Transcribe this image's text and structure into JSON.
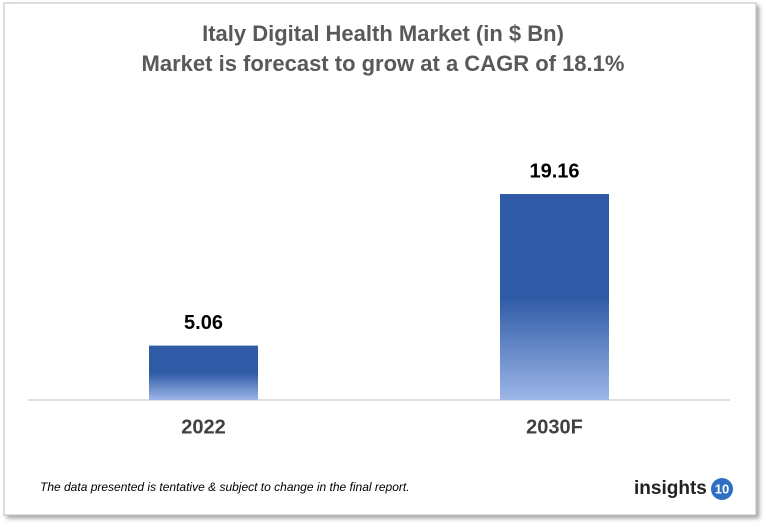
{
  "chart_data": {
    "type": "bar",
    "title": "Italy Digital Health Market (in $ Bn)",
    "subtitle": "Market is forecast to grow at a CAGR of 18.1%",
    "categories": [
      "2022",
      "2030F"
    ],
    "values": [
      5.06,
      19.16
    ],
    "color": "#2e5aa6",
    "footnote": "The data presented is tentative & subject to change in the final report.",
    "logo": {
      "text": "insights",
      "number": "10"
    }
  }
}
